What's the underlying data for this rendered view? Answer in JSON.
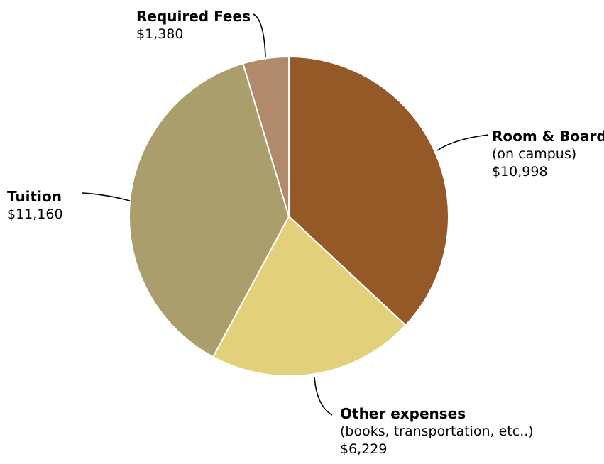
{
  "chart_data": {
    "type": "pie",
    "slices": [
      {
        "name": "Room & Board",
        "note": "(on campus)",
        "value_label": "$10,998",
        "value": 10998,
        "color": "#955927"
      },
      {
        "name": "Other expenses",
        "note": "(books, transportation, etc..)",
        "value_label": "$6,229",
        "value": 6229,
        "color": "#E2D17A"
      },
      {
        "name": "Tuition",
        "note": "",
        "value_label": "$11,160",
        "value": 11160,
        "color": "#A99E6C"
      },
      {
        "name": "Required Fees",
        "note": "",
        "value_label": "$1,380",
        "value": 1380,
        "color": "#B08A6B"
      }
    ],
    "start": "12 o'clock",
    "direction": "clockwise"
  }
}
